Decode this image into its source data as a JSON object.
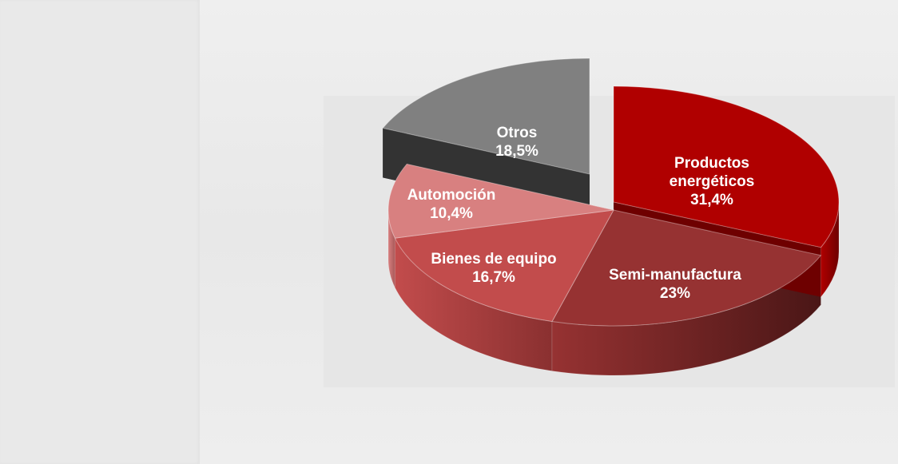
{
  "chart_data": {
    "type": "pie",
    "style": "3d-exploded",
    "title": "",
    "legend": "none (labels on slices)",
    "slices": [
      {
        "label": "Productos energéticos",
        "label_lines": [
          "Productos",
          "energéticos"
        ],
        "value": 31.4,
        "value_label": "31,4%",
        "color": "#b00000",
        "side_color": "#6e0000"
      },
      {
        "label": "Semi-manufactura",
        "label_lines": [
          "Semi-manufactura"
        ],
        "value": 23,
        "value_label": "23%",
        "color": "#963232",
        "side_color": "#4a1616"
      },
      {
        "label": "Bienes de equipo",
        "label_lines": [
          "Bienes de equipo"
        ],
        "value": 16.7,
        "value_label": "16,7%",
        "color": "#c24c4c",
        "side_color": "#8a3030"
      },
      {
        "label": "Automoción",
        "label_lines": [
          "Automoción"
        ],
        "value": 10.4,
        "value_label": "10,4%",
        "color": "#d88080",
        "side_color": "#a85858"
      },
      {
        "label": "Otros",
        "label_lines": [
          "Otros"
        ],
        "value": 18.5,
        "value_label": "18,5%",
        "color": "#808080",
        "side_color": "#333333",
        "exploded": true
      }
    ]
  }
}
